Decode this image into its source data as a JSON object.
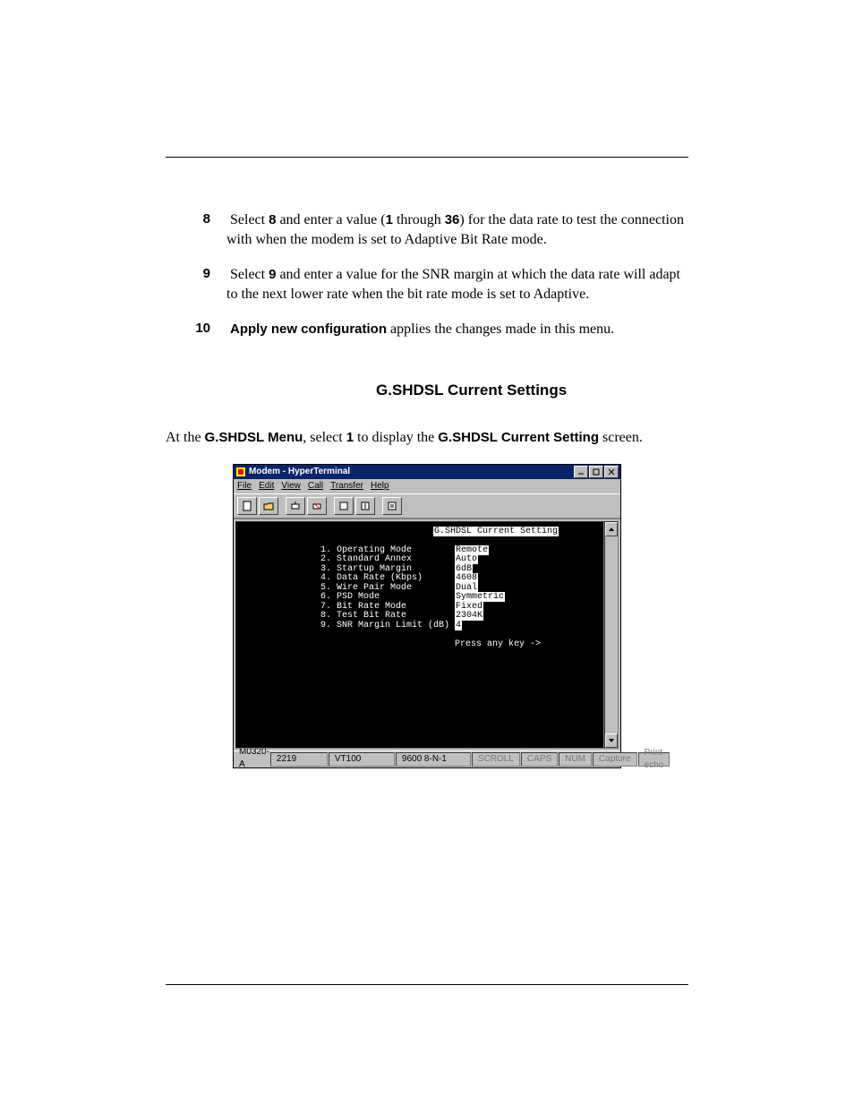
{
  "rule_color": "#000000",
  "step8": {
    "num": "8",
    "pre": "Select ",
    "bold1": "8",
    "mid1": " and enter a value (",
    "bold2": "1",
    "mid2": " through ",
    "bold3": "36",
    "post": ") for the data rate to test the connection with when the modem is set to Adaptive Bit Rate mode."
  },
  "step9": {
    "num": "9",
    "pre": "Select ",
    "bold1": "9",
    "post": " and enter a value for the SNR margin at which the data rate will adapt to the next lower rate when the bit rate mode is set to Adaptive."
  },
  "step10": {
    "num": "10",
    "bold_label": "Apply new configuration",
    "post": " applies the changes made in this menu."
  },
  "section": {
    "title_label": "G.SHDSL Current Settings",
    "para_pre": "At the ",
    "para_b1": "G.SHDSL Menu",
    "para_mid": ", select ",
    "para_b2": "1",
    "para_mid2": " to display the ",
    "para_b3": "G.SHDSL Current Setting",
    "para_post": " screen."
  },
  "win": {
    "title": "Modem - HyperTerminal",
    "menus": [
      "File",
      "Edit",
      "View",
      "Call",
      "Transfer",
      "Help"
    ],
    "heading": "G.SHDSL Current Setting",
    "rows": [
      {
        "n": "1.",
        "label": "Operating Mode",
        "val": "Remote"
      },
      {
        "n": "2.",
        "label": "Standard Annex",
        "val": "Auto"
      },
      {
        "n": "3.",
        "label": "Startup Margin",
        "val": "6dB"
      },
      {
        "n": "4.",
        "label": "Data Rate (Kbps)",
        "val": "4608"
      },
      {
        "n": "5.",
        "label": "Wire Pair Mode",
        "val": "Dual"
      },
      {
        "n": "6.",
        "label": "PSD Mode",
        "val": "Symmetric"
      },
      {
        "n": "7.",
        "label": "Bit Rate Mode",
        "val": "Fixed"
      },
      {
        "n": "8.",
        "label": "Test Bit Rate",
        "val": "2304K"
      },
      {
        "n": "9.",
        "label": "SNR Margin Limit (dB)",
        "val": "4"
      }
    ],
    "prompt": "Press any key ->",
    "status": {
      "fig": "M0320-A",
      "conn": "2219",
      "emul": "VT100",
      "line": "9600 8-N-1",
      "cells": [
        "SCROLL",
        "CAPS",
        "NUM",
        "Capture",
        "Print echo"
      ]
    }
  }
}
